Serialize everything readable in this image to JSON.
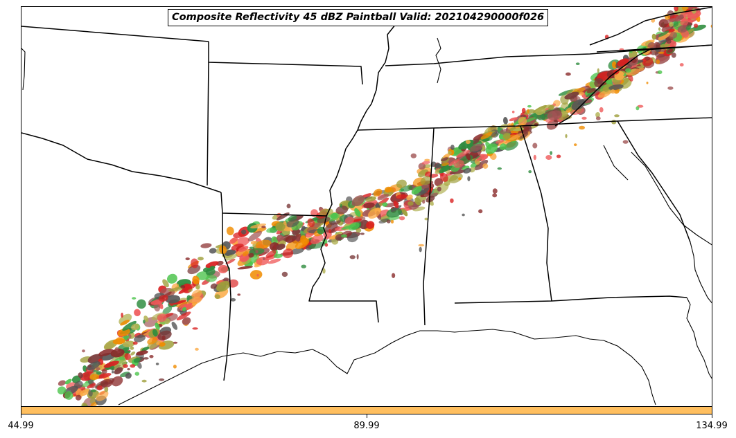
{
  "title": "Composite Reflectivity 45 dBZ Paintball Valid: 202104290000f026",
  "colorbar": {
    "color": "#ffbf5f",
    "ticks": [
      "44.99",
      "89.99",
      "134.99"
    ]
  },
  "member_colors": [
    "#d92020",
    "#ef5a5a",
    "#a05454",
    "#8a2a2a",
    "#f08c00",
    "#fbaa45",
    "#4cc44c",
    "#2e8c3e",
    "#9e9e3a",
    "#b0b050",
    "#555555",
    "#7a3b3b"
  ],
  "icons": [
    "state-boundaries",
    "coastline"
  ]
}
